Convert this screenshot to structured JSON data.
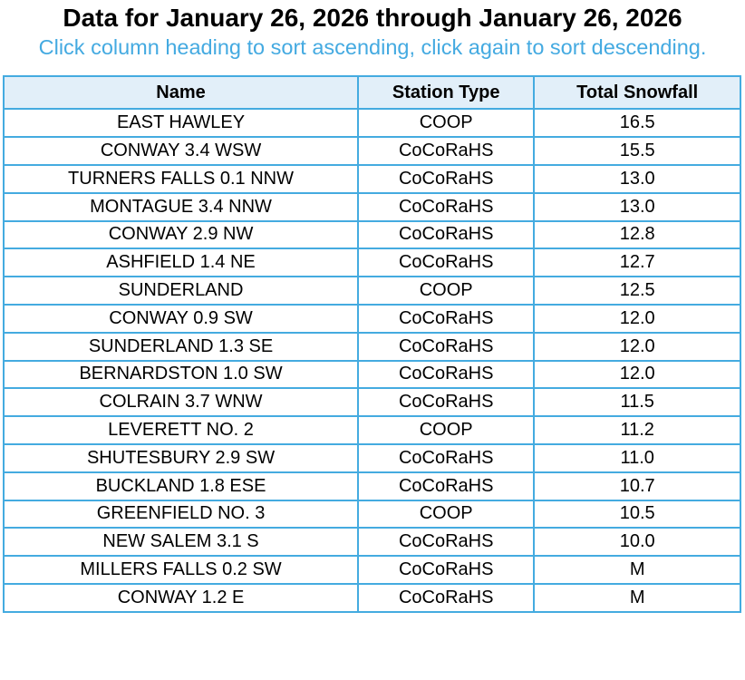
{
  "page": {
    "title": "Data for January 26, 2026 through January 26, 2026",
    "subtitle": "Click column heading to sort ascending, click again to sort descending."
  },
  "colors": {
    "subtitle_text": "#44AAE1",
    "table_border": "#44ABE0",
    "header_background": "#E2EFF9",
    "row_background": "#FFFFFF",
    "title_text": "#000000"
  },
  "table": {
    "columns": [
      {
        "label": "Name",
        "key": "name"
      },
      {
        "label": "Station Type",
        "key": "station_type"
      },
      {
        "label": "Total Snowfall",
        "key": "total_snowfall"
      }
    ],
    "rows": [
      {
        "name": "EAST HAWLEY",
        "station_type": "COOP",
        "total_snowfall": "16.5"
      },
      {
        "name": "CONWAY 3.4 WSW",
        "station_type": "CoCoRaHS",
        "total_snowfall": "15.5"
      },
      {
        "name": "TURNERS FALLS 0.1 NNW",
        "station_type": "CoCoRaHS",
        "total_snowfall": "13.0"
      },
      {
        "name": "MONTAGUE 3.4 NNW",
        "station_type": "CoCoRaHS",
        "total_snowfall": "13.0"
      },
      {
        "name": "CONWAY 2.9 NW",
        "station_type": "CoCoRaHS",
        "total_snowfall": "12.8"
      },
      {
        "name": "ASHFIELD 1.4 NE",
        "station_type": "CoCoRaHS",
        "total_snowfall": "12.7"
      },
      {
        "name": "SUNDERLAND",
        "station_type": "COOP",
        "total_snowfall": "12.5"
      },
      {
        "name": "CONWAY 0.9 SW",
        "station_type": "CoCoRaHS",
        "total_snowfall": "12.0"
      },
      {
        "name": "SUNDERLAND 1.3 SE",
        "station_type": "CoCoRaHS",
        "total_snowfall": "12.0"
      },
      {
        "name": "BERNARDSTON 1.0 SW",
        "station_type": "CoCoRaHS",
        "total_snowfall": "12.0"
      },
      {
        "name": "COLRAIN 3.7 WNW",
        "station_type": "CoCoRaHS",
        "total_snowfall": "11.5"
      },
      {
        "name": "LEVERETT NO. 2",
        "station_type": "COOP",
        "total_snowfall": "11.2"
      },
      {
        "name": "SHUTESBURY 2.9 SW",
        "station_type": "CoCoRaHS",
        "total_snowfall": "11.0"
      },
      {
        "name": "BUCKLAND 1.8 ESE",
        "station_type": "CoCoRaHS",
        "total_snowfall": "10.7"
      },
      {
        "name": "GREENFIELD NO. 3",
        "station_type": "COOP",
        "total_snowfall": "10.5"
      },
      {
        "name": "NEW SALEM 3.1 S",
        "station_type": "CoCoRaHS",
        "total_snowfall": "10.0"
      },
      {
        "name": "MILLERS FALLS 0.2 SW",
        "station_type": "CoCoRaHS",
        "total_snowfall": "M"
      },
      {
        "name": "CONWAY 1.2 E",
        "station_type": "CoCoRaHS",
        "total_snowfall": "M"
      }
    ]
  }
}
